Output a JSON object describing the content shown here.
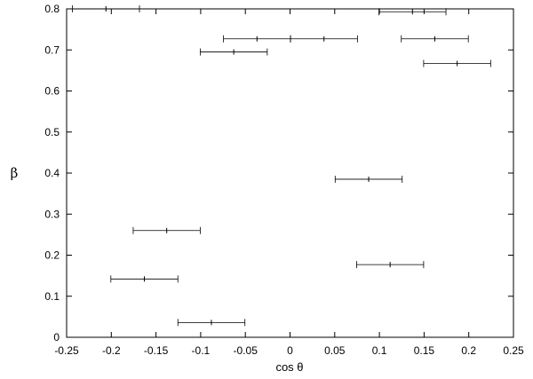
{
  "chart_data": {
    "type": "scatter",
    "xlabel": "cos θ",
    "ylabel": "β",
    "xlim": [
      -0.25,
      0.25
    ],
    "ylim": [
      0,
      0.8
    ],
    "grid": false,
    "x_ticks": [
      "-0.25",
      "-0.2",
      "-0.15",
      "-0.1",
      "-0.05",
      "0",
      "0.05",
      "0.1",
      "0.15",
      "0.2",
      "0.25"
    ],
    "y_ticks": [
      "0",
      "0.1",
      "0.2",
      "0.3",
      "0.4",
      "0.5",
      "0.6",
      "0.7",
      "0.8"
    ],
    "series": [
      {
        "error_bars": "x",
        "points": [
          {
            "x": -0.206,
            "y": 0.8,
            "xerr": 0.0375
          },
          {
            "x": 0.137,
            "y": 0.793,
            "xerr": 0.0375
          },
          {
            "x": -0.037,
            "y": 0.727,
            "xerr": 0.0375
          },
          {
            "x": 0.038,
            "y": 0.727,
            "xerr": 0.0375
          },
          {
            "x": 0.162,
            "y": 0.727,
            "xerr": 0.0375
          },
          {
            "x": -0.063,
            "y": 0.695,
            "xerr": 0.0375
          },
          {
            "x": 0.187,
            "y": 0.667,
            "xerr": 0.0375
          },
          {
            "x": 0.088,
            "y": 0.385,
            "xerr": 0.0375
          },
          {
            "x": -0.138,
            "y": 0.26,
            "xerr": 0.0375
          },
          {
            "x": 0.112,
            "y": 0.177,
            "xerr": 0.0375
          },
          {
            "x": -0.163,
            "y": 0.142,
            "xerr": 0.0375
          },
          {
            "x": -0.088,
            "y": 0.036,
            "xerr": 0.0375
          }
        ]
      }
    ]
  }
}
